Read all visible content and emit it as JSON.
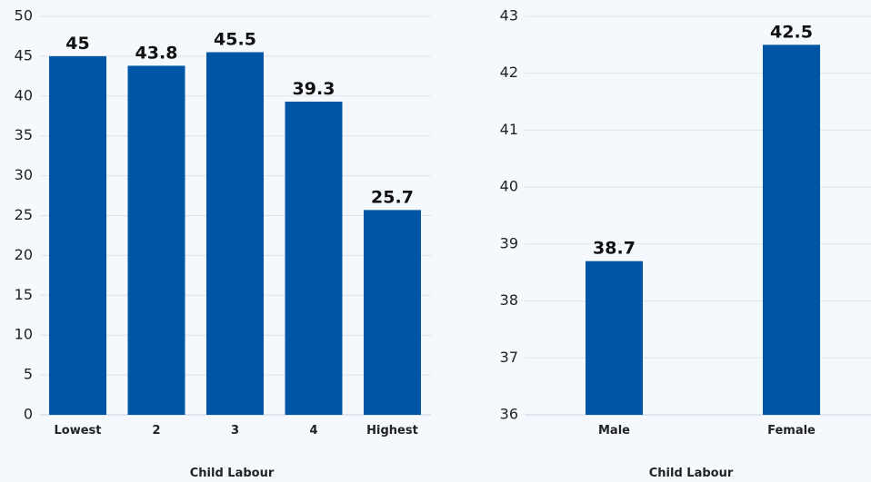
{
  "chart_data": [
    {
      "type": "bar",
      "categories": [
        "Lowest",
        "2",
        "3",
        "4",
        "Highest"
      ],
      "values": [
        45,
        43.8,
        45.5,
        39.3,
        25.7
      ],
      "data_labels": [
        "45",
        "43.8",
        "45.5",
        "39.3",
        "25.7"
      ],
      "xlabel": "Child Labour",
      "ylabel": "",
      "ylim": [
        0,
        50
      ],
      "yticks": [
        0,
        5,
        10,
        15,
        20,
        25,
        30,
        35,
        40,
        45,
        50
      ],
      "grid": true,
      "bar_color": "#0055a4"
    },
    {
      "type": "bar",
      "categories": [
        "Male",
        "Female"
      ],
      "values": [
        38.7,
        42.5
      ],
      "data_labels": [
        "38.7",
        "42.5"
      ],
      "xlabel": "Child Labour",
      "ylabel": "",
      "ylim": [
        36,
        43
      ],
      "yticks": [
        36,
        37,
        38,
        39,
        40,
        41,
        42,
        43
      ],
      "grid": true,
      "bar_color": "#0055a4"
    }
  ]
}
